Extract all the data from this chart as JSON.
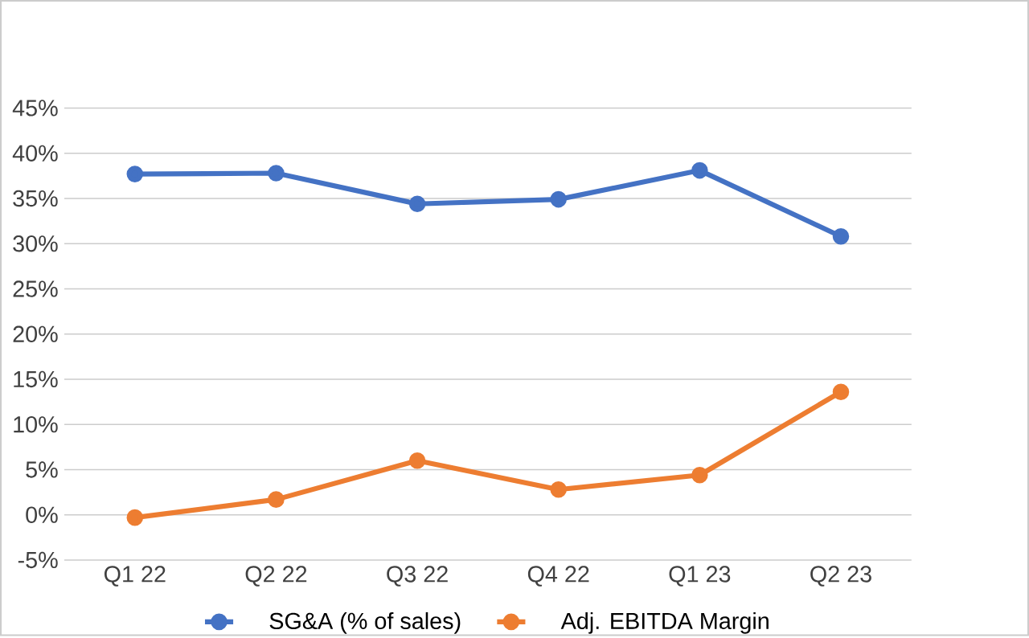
{
  "chart_data": {
    "type": "line",
    "categories": [
      "Q1 22",
      "Q2 22",
      "Q3 22",
      "Q4 22",
      "Q1 23",
      "Q2 23"
    ],
    "series": [
      {
        "name": "SG&A (% of sales)",
        "color": "#4472c4",
        "values": [
          37.7,
          37.8,
          34.4,
          34.9,
          38.1,
          30.8
        ]
      },
      {
        "name": "Adj. EBITDA Margin",
        "color": "#ed7d31",
        "values": [
          -0.3,
          1.7,
          6.0,
          2.8,
          4.4,
          13.6
        ]
      }
    ],
    "ylim": [
      -5,
      45
    ],
    "yticks": [
      {
        "value": -5,
        "label": "-5%"
      },
      {
        "value": 0,
        "label": "0%"
      },
      {
        "value": 5,
        "label": "5%"
      },
      {
        "value": 10,
        "label": "10%"
      },
      {
        "value": 15,
        "label": "15%"
      },
      {
        "value": 20,
        "label": "20%"
      },
      {
        "value": 25,
        "label": "25%"
      },
      {
        "value": 30,
        "label": "30%"
      },
      {
        "value": 35,
        "label": "35%"
      },
      {
        "value": 40,
        "label": "40%"
      },
      {
        "value": 45,
        "label": "45%"
      }
    ],
    "grid": "y",
    "legend": "bottom",
    "marker": "circle",
    "line_style": "solid"
  }
}
